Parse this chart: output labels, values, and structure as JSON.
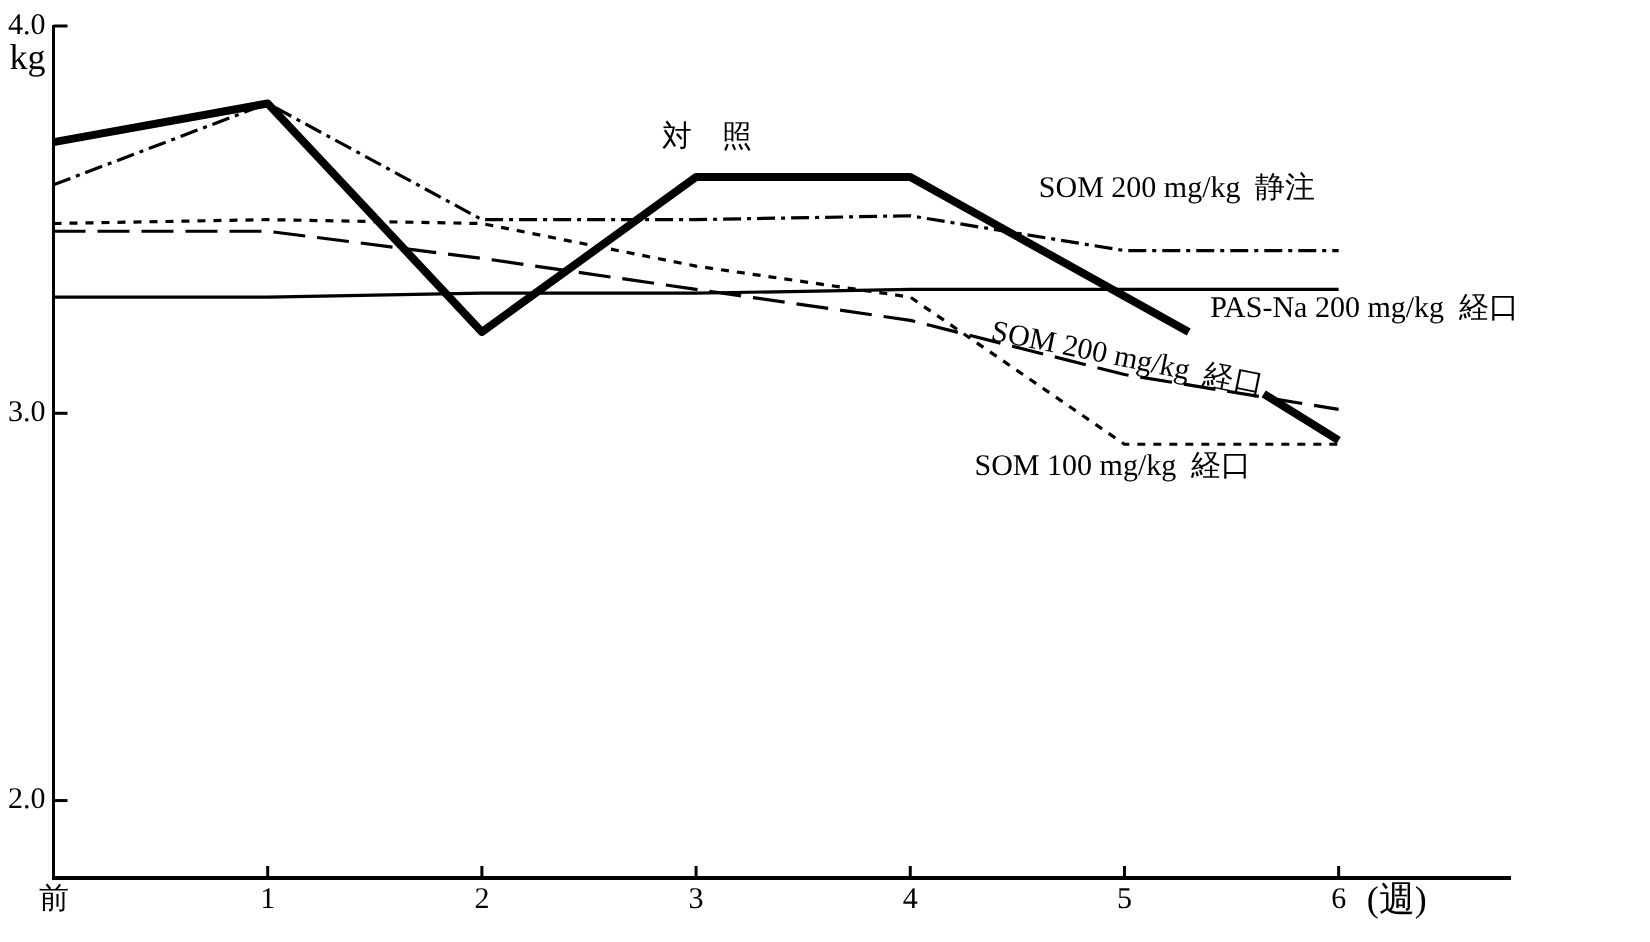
{
  "chart_data": {
    "type": "line",
    "ylabel": "kg",
    "xlabel": "(週)",
    "x": [
      0,
      1,
      2,
      3,
      4,
      5,
      6
    ],
    "xlim": [
      0,
      6.8
    ],
    "xticks": [
      {
        "value": 0,
        "label": "前"
      },
      1,
      2,
      3,
      4,
      5,
      6
    ],
    "ylim": [
      1.8,
      4.0
    ],
    "yticks": [
      {
        "value": 2,
        "label": "2.0"
      },
      {
        "value": 3,
        "label": "3.0"
      },
      {
        "value": 4,
        "label": "4.0"
      }
    ],
    "grid": false,
    "legend": false,
    "marker": "none",
    "series": [
      {
        "name": "対　照",
        "color": "#000000",
        "line_style": "solid",
        "x": [
          0,
          1,
          2,
          3,
          4,
          5.3,
          5.45,
          5.65,
          6
        ],
        "values": [
          3.7,
          3.8,
          3.21,
          3.61,
          3.61,
          3.21,
          null,
          3.05,
          2.93
        ]
      },
      {
        "name": "SOM 200 mg/kg  静注",
        "color": "#000000",
        "line_style": "dashdot",
        "values": [
          3.59,
          3.8,
          3.5,
          3.5,
          3.51,
          3.42,
          3.42
        ]
      },
      {
        "name": "PAS-Na 200 mg/kg  経口",
        "color": "#000000",
        "line_style": "solid",
        "values": [
          3.3,
          3.3,
          3.31,
          3.31,
          3.32,
          3.32,
          3.32
        ]
      },
      {
        "name": "SOM 200 mg/kg  経口",
        "color": "#000000",
        "line_style": "dashed",
        "values": [
          3.47,
          3.47,
          3.4,
          3.32,
          3.24,
          3.1,
          3.01
        ]
      },
      {
        "name": "SOM 100 mg/kg  経口",
        "color": "#000000",
        "line_style": "dotted",
        "values": [
          3.49,
          3.5,
          3.49,
          3.38,
          3.3,
          2.92,
          2.92
        ]
      }
    ]
  }
}
